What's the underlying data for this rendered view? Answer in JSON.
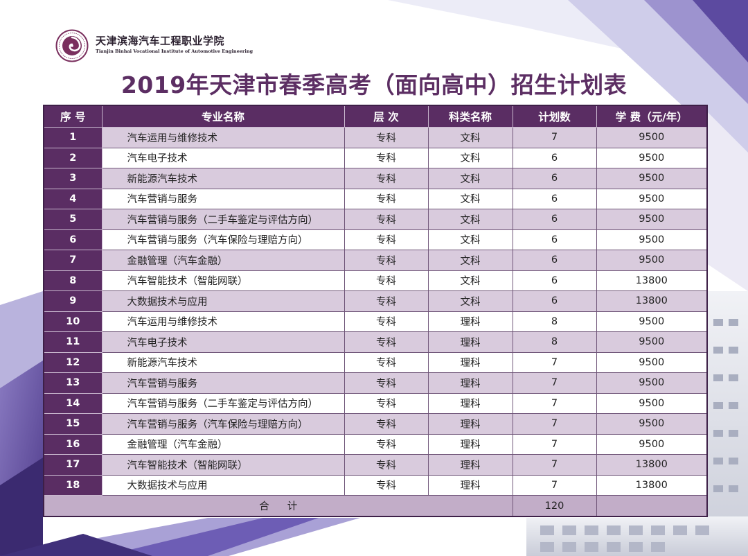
{
  "logo": {
    "name_cn": "天津滨海汽车工程职业学院",
    "name_en": "Tianjin Binhai Vocational Institute of Automotive Engineering"
  },
  "title": "2019年天津市春季高考（面向高中）招生计划表",
  "table": {
    "headers": {
      "seq": "序  号",
      "major": "专业名称",
      "level": "层  次",
      "category": "科类名称",
      "plan": "计划数",
      "fee": "学  费（元/年）"
    },
    "rows": [
      {
        "seq": "1",
        "major": "汽车运用与维修技术",
        "level": "专科",
        "category": "文科",
        "plan": "7",
        "fee": "9500"
      },
      {
        "seq": "2",
        "major": "汽车电子技术",
        "level": "专科",
        "category": "文科",
        "plan": "6",
        "fee": "9500"
      },
      {
        "seq": "3",
        "major": "新能源汽车技术",
        "level": "专科",
        "category": "文科",
        "plan": "6",
        "fee": "9500"
      },
      {
        "seq": "4",
        "major": "汽车营销与服务",
        "level": "专科",
        "category": "文科",
        "plan": "6",
        "fee": "9500"
      },
      {
        "seq": "5",
        "major": "汽车营销与服务（二手车鉴定与评估方向）",
        "level": "专科",
        "category": "文科",
        "plan": "6",
        "fee": "9500"
      },
      {
        "seq": "6",
        "major": "汽车营销与服务（汽车保险与理赔方向）",
        "level": "专科",
        "category": "文科",
        "plan": "6",
        "fee": "9500"
      },
      {
        "seq": "7",
        "major": "金融管理（汽车金融）",
        "level": "专科",
        "category": "文科",
        "plan": "6",
        "fee": "9500"
      },
      {
        "seq": "8",
        "major": "汽车智能技术（智能网联）",
        "level": "专科",
        "category": "文科",
        "plan": "6",
        "fee": "13800"
      },
      {
        "seq": "9",
        "major": "大数据技术与应用",
        "level": "专科",
        "category": "文科",
        "plan": "6",
        "fee": "13800"
      },
      {
        "seq": "10",
        "major": "汽车运用与维修技术",
        "level": "专科",
        "category": "理科",
        "plan": "8",
        "fee": "9500"
      },
      {
        "seq": "11",
        "major": "汽车电子技术",
        "level": "专科",
        "category": "理科",
        "plan": "8",
        "fee": "9500"
      },
      {
        "seq": "12",
        "major": "新能源汽车技术",
        "level": "专科",
        "category": "理科",
        "plan": "7",
        "fee": "9500"
      },
      {
        "seq": "13",
        "major": "汽车营销与服务",
        "level": "专科",
        "category": "理科",
        "plan": "7",
        "fee": "9500"
      },
      {
        "seq": "14",
        "major": "汽车营销与服务（二手车鉴定与评估方向）",
        "level": "专科",
        "category": "理科",
        "plan": "7",
        "fee": "9500"
      },
      {
        "seq": "15",
        "major": "汽车营销与服务（汽车保险与理赔方向）",
        "level": "专科",
        "category": "理科",
        "plan": "7",
        "fee": "9500"
      },
      {
        "seq": "16",
        "major": "金融管理（汽车金融）",
        "level": "专科",
        "category": "理科",
        "plan": "7",
        "fee": "9500"
      },
      {
        "seq": "17",
        "major": "汽车智能技术（智能网联）",
        "level": "专科",
        "category": "理科",
        "plan": "7",
        "fee": "13800"
      },
      {
        "seq": "18",
        "major": "大数据技术与应用",
        "level": "专科",
        "category": "理科",
        "plan": "7",
        "fee": "13800"
      }
    ],
    "total": {
      "label": "合计",
      "plan": "120"
    }
  },
  "colors": {
    "accent_purple": "#5a2d63",
    "title_purple": "#5c2e63",
    "row_shade": "#d9cbdd",
    "total_shade": "#c2adc8"
  }
}
